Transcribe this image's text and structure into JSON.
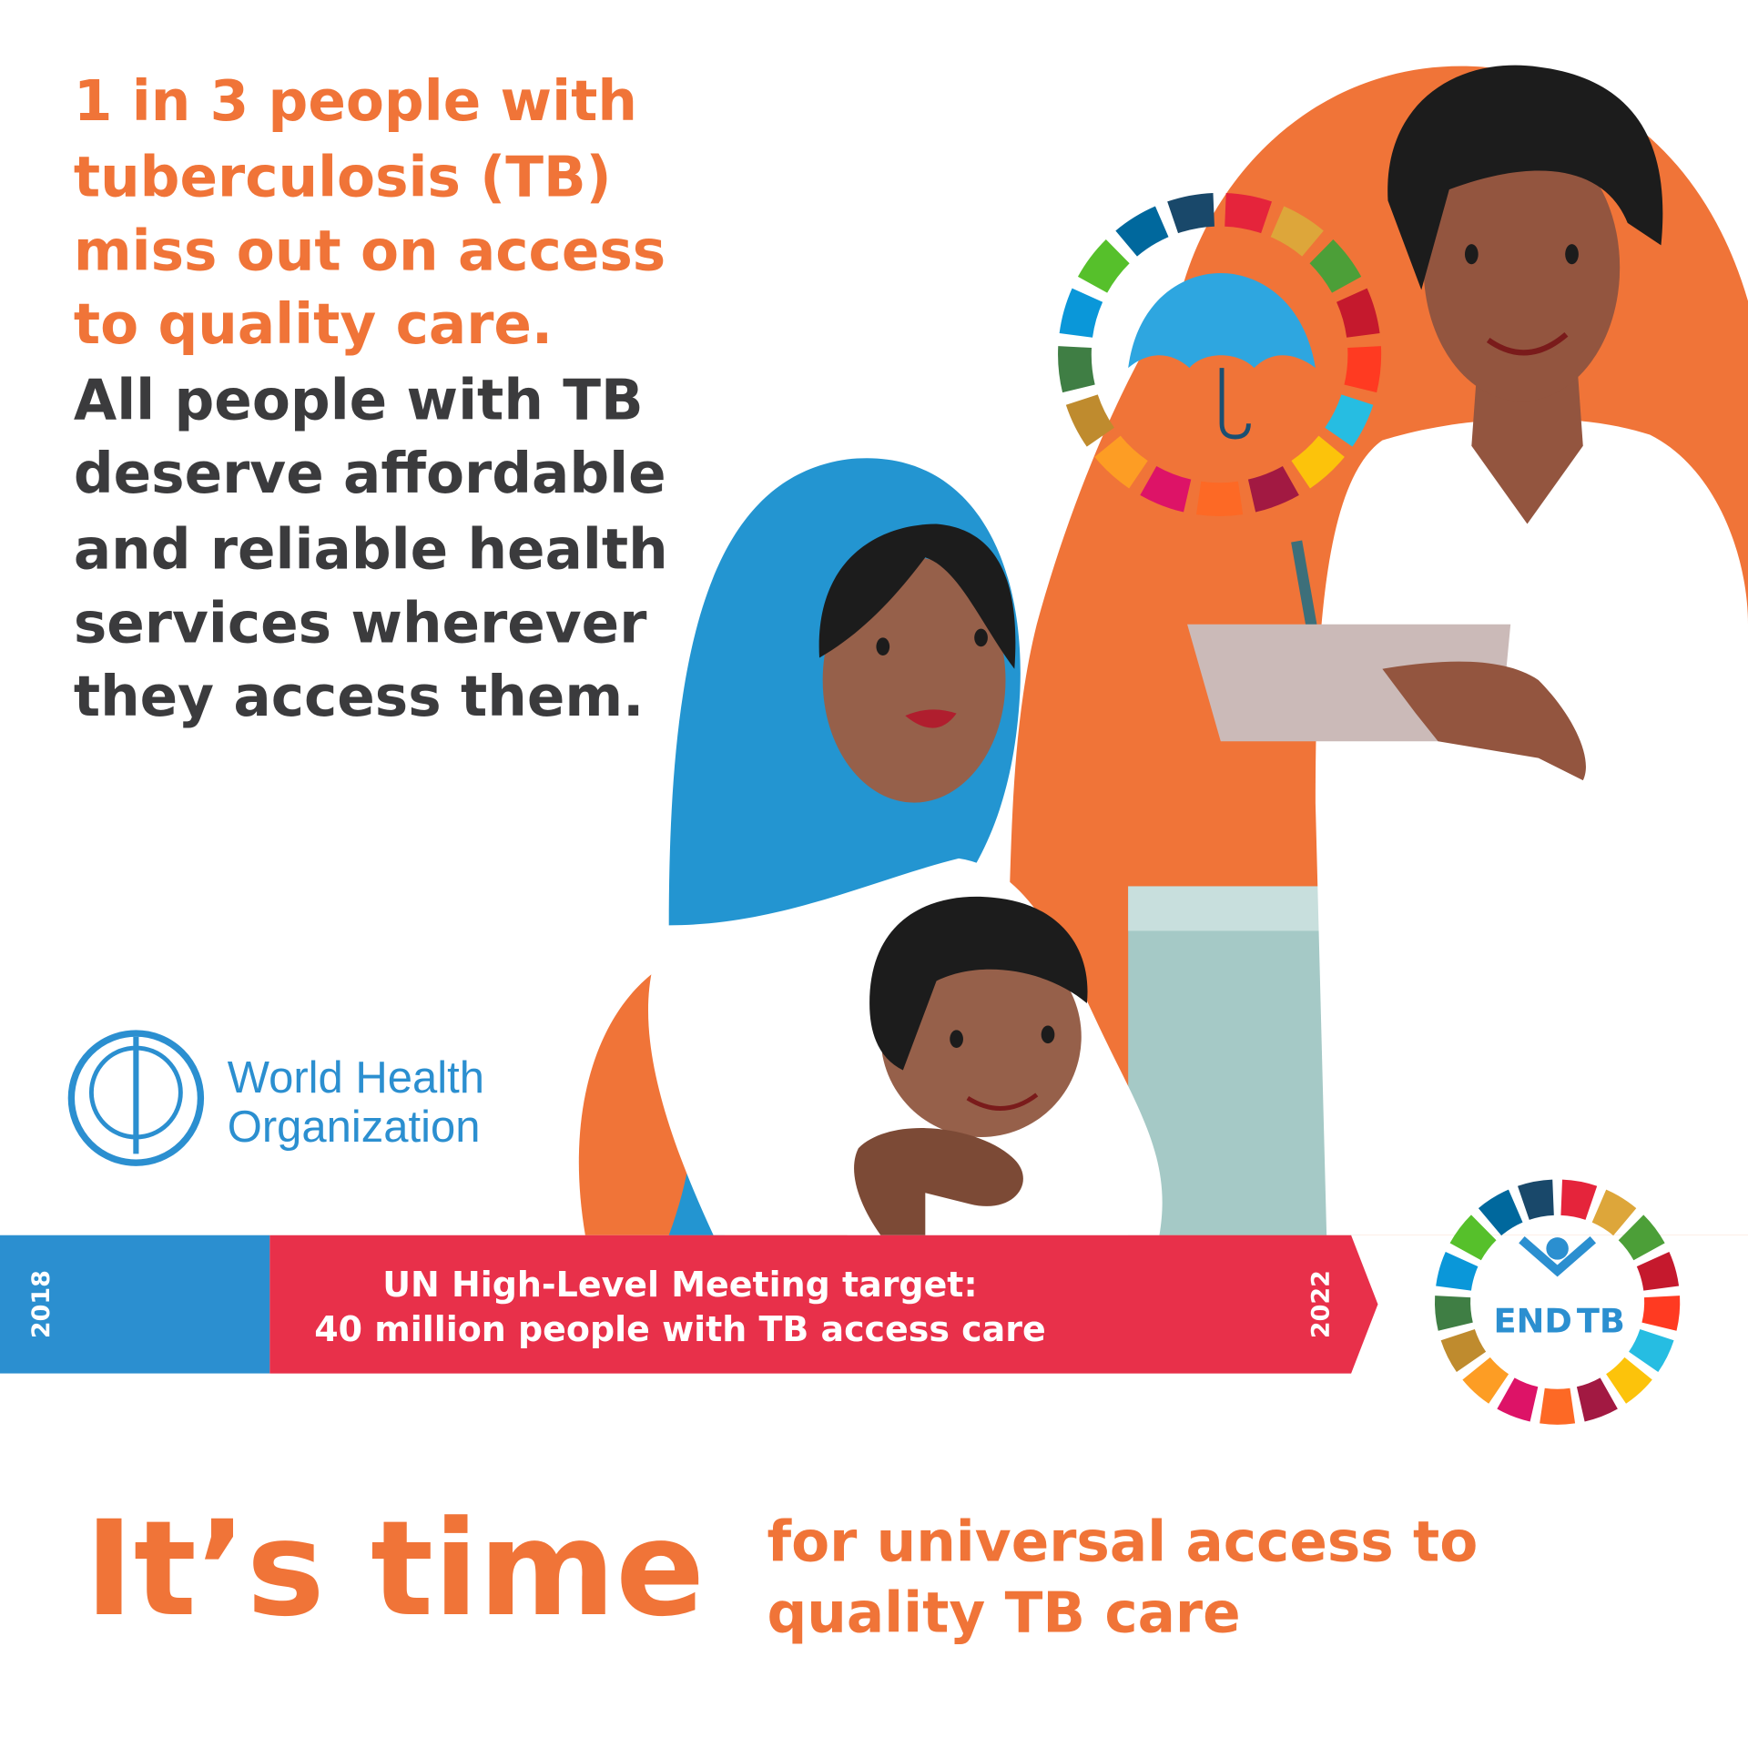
{
  "headline": {
    "orange_lines": [
      "1 in 3 people with",
      "tuberculosis (TB)",
      "miss out on access",
      "to quality care."
    ],
    "dark_lines": [
      "All people with TB",
      "deserve affordable",
      "and reliable health",
      "services wherever",
      "they access them."
    ]
  },
  "who_logo": {
    "lines": [
      "World Health",
      "Organization"
    ]
  },
  "timeline": {
    "start_year": "2018",
    "lines": [
      "UN High-Level Meeting target:",
      "40 million people with TB access care"
    ],
    "end_year": "2022"
  },
  "end_tb_logo": {
    "words": [
      "END",
      "TB"
    ]
  },
  "footer": {
    "title": "It’s time",
    "lines": [
      "for universal access to",
      "quality TB care"
    ]
  }
}
